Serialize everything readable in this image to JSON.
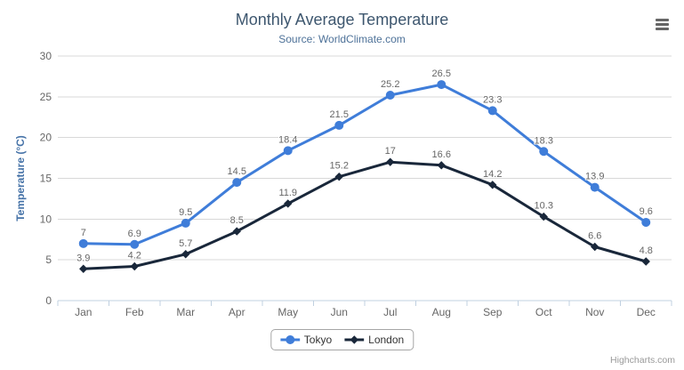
{
  "chart": {
    "title": "Monthly Average Temperature",
    "subtitle": "Source: WorldClimate.com",
    "credit": "Highcharts.com"
  },
  "icons": {
    "export_menu": "hamburger-menu-icon"
  },
  "colors": {
    "title": "#3e576f",
    "subtitle": "#4d7198",
    "axis_title": "#4572a7",
    "axis_line": "#c0d0e0",
    "gridline": "#d8d8d8",
    "labels": "#666666",
    "data_label": "#666666",
    "legend_text": "#333333",
    "legend_border": "#a6a6a6",
    "credit": "#999999",
    "menu_icon": "#666666",
    "tokyo_series": "#3f7dd9",
    "london_series": "#19273a"
  },
  "chart_data": {
    "type": "line",
    "title": "Monthly Average Temperature",
    "subtitle": "Source: WorldClimate.com",
    "categories": [
      "Jan",
      "Feb",
      "Mar",
      "Apr",
      "May",
      "Jun",
      "Jul",
      "Aug",
      "Sep",
      "Oct",
      "Nov",
      "Dec"
    ],
    "series": [
      {
        "name": "Tokyo",
        "color": "#3f7dd9",
        "marker": "circle",
        "values": [
          7,
          6.9,
          9.5,
          14.5,
          18.4,
          21.5,
          25.2,
          26.5,
          23.3,
          18.3,
          13.9,
          9.6
        ]
      },
      {
        "name": "London",
        "color": "#19273a",
        "marker": "diamond",
        "values": [
          3.9,
          4.2,
          5.7,
          8.5,
          11.9,
          15.2,
          17,
          16.6,
          14.2,
          10.3,
          6.6,
          4.8
        ]
      }
    ],
    "xlabel": "",
    "ylabel": "Temperature (°C)",
    "ylim": [
      0,
      30
    ],
    "yticks": [
      0,
      5,
      10,
      15,
      20,
      25,
      30
    ],
    "grid": true,
    "data_labels": true,
    "legend_position": "bottom"
  }
}
